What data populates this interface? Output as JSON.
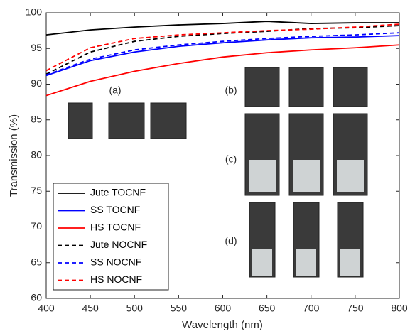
{
  "chart_data": {
    "type": "line",
    "xlabel": "Wavelength (nm)",
    "ylabel": "Transmission (%)",
    "x": [
      400,
      450,
      500,
      550,
      600,
      650,
      700,
      750,
      800
    ],
    "series": [
      {
        "name": "Jute TOCNF",
        "color": "#000000",
        "dash": false,
        "values": [
          96.9,
          97.6,
          98.0,
          98.3,
          98.5,
          98.8,
          98.5,
          98.6,
          98.6
        ]
      },
      {
        "name": "SS TOCNF",
        "color": "#0000ff",
        "dash": false,
        "values": [
          91.2,
          93.3,
          94.5,
          95.3,
          95.8,
          96.2,
          96.5,
          96.6,
          96.8
        ]
      },
      {
        "name": "HS TOCNF",
        "color": "#ff0000",
        "dash": false,
        "values": [
          88.4,
          90.4,
          91.8,
          92.9,
          93.8,
          94.4,
          94.8,
          95.1,
          95.5
        ]
      },
      {
        "name": "Jute NOCNF",
        "color": "#000000",
        "dash": true,
        "values": [
          91.4,
          94.5,
          96.0,
          96.7,
          97.1,
          97.4,
          97.8,
          97.9,
          98.2
        ]
      },
      {
        "name": "SS NOCNF",
        "color": "#0000ff",
        "dash": true,
        "values": [
          91.3,
          93.5,
          94.8,
          95.5,
          96.0,
          96.4,
          96.7,
          96.9,
          97.2
        ]
      },
      {
        "name": "HS NOCNF",
        "color": "#ff0000",
        "dash": true,
        "values": [
          91.9,
          95.1,
          96.4,
          96.9,
          97.2,
          97.5,
          97.7,
          98.0,
          98.4
        ]
      }
    ],
    "annotations": [
      "(a)",
      "(b)",
      "(c)",
      "(d)"
    ],
    "xlim": [
      400,
      800
    ],
    "xticks": [
      400,
      450,
      500,
      550,
      600,
      650,
      700,
      750,
      800
    ],
    "ylim": [
      60,
      100
    ],
    "yticks": [
      60,
      65,
      70,
      75,
      80,
      85,
      90,
      95,
      100
    ],
    "grid": false,
    "legend": "lower left"
  }
}
